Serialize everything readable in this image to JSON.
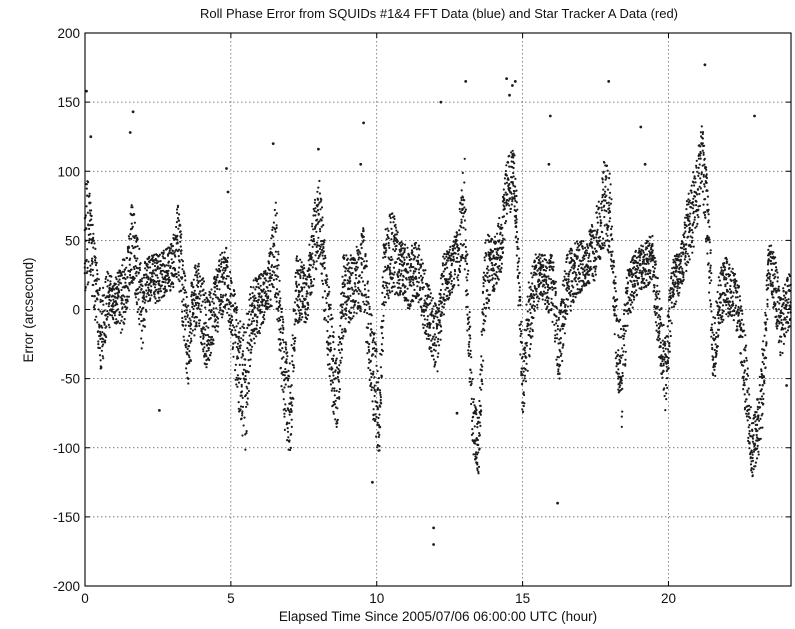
{
  "chart_data": {
    "type": "scatter",
    "title": "Roll Phase Error from SQUIDs #1&4 FFT Data (blue) and Star Tracker A Data (red)",
    "xlabel": "Elapsed Time Since 2005/07/06 06:00:00 UTC (hour)",
    "ylabel": "Error (arcsecond)",
    "xlim": [
      0,
      24.2
    ],
    "ylim": [
      -200,
      200
    ],
    "grid": true,
    "x_ticks": [
      0,
      5,
      10,
      15,
      20
    ],
    "x_tick_labels": [
      "0",
      "5",
      "10",
      "15",
      "20"
    ],
    "y_ticks": [
      200,
      150,
      100,
      50,
      0,
      -50,
      -100,
      -150,
      -200
    ],
    "y_tick_labels": [
      "200",
      "150",
      "100",
      "50",
      "0",
      "-50",
      "-100",
      "-150",
      "-200"
    ],
    "marker_color": "#1c1c1c",
    "sample_interval_hours": 0.016,
    "envelope": [
      [
        0.0,
        5,
        70
      ],
      [
        0.05,
        10,
        110
      ],
      [
        0.15,
        20,
        90
      ],
      [
        0.35,
        -10,
        45
      ],
      [
        0.55,
        -48,
        10
      ],
      [
        0.75,
        -15,
        30
      ],
      [
        1.0,
        -10,
        20
      ],
      [
        1.25,
        -20,
        35
      ],
      [
        1.45,
        0,
        40
      ],
      [
        1.6,
        20,
        80
      ],
      [
        1.75,
        5,
        60
      ],
      [
        1.95,
        -30,
        30
      ],
      [
        2.15,
        0,
        40
      ],
      [
        2.45,
        5,
        40
      ],
      [
        2.8,
        10,
        45
      ],
      [
        3.0,
        15,
        50
      ],
      [
        3.2,
        20,
        85
      ],
      [
        3.35,
        -20,
        40
      ],
      [
        3.55,
        -60,
        0
      ],
      [
        3.7,
        -20,
        30
      ],
      [
        3.9,
        -15,
        35
      ],
      [
        4.15,
        -45,
        15
      ],
      [
        4.35,
        -30,
        20
      ],
      [
        4.6,
        -15,
        40
      ],
      [
        4.85,
        0,
        45
      ],
      [
        5.05,
        -30,
        20
      ],
      [
        5.3,
        -80,
        0
      ],
      [
        5.5,
        -105,
        -10
      ],
      [
        5.7,
        -30,
        20
      ],
      [
        5.95,
        -20,
        25
      ],
      [
        6.25,
        0,
        30
      ],
      [
        6.55,
        5,
        80
      ],
      [
        6.7,
        -45,
        20
      ],
      [
        6.85,
        -90,
        -20
      ],
      [
        7.05,
        -110,
        -40
      ],
      [
        7.25,
        -10,
        40
      ],
      [
        7.6,
        -10,
        30
      ],
      [
        7.85,
        20,
        75
      ],
      [
        8.05,
        40,
        100
      ],
      [
        8.25,
        -20,
        40
      ],
      [
        8.45,
        -70,
        0
      ],
      [
        8.65,
        -90,
        -40
      ],
      [
        8.85,
        -20,
        40
      ],
      [
        9.2,
        -5,
        40
      ],
      [
        9.55,
        0,
        60
      ],
      [
        9.75,
        -60,
        10
      ],
      [
        9.95,
        -95,
        -20
      ],
      [
        10.1,
        -110,
        -50
      ],
      [
        10.25,
        0,
        60
      ],
      [
        10.5,
        10,
        80
      ],
      [
        10.8,
        10,
        50
      ],
      [
        11.1,
        0,
        45
      ],
      [
        11.4,
        10,
        50
      ],
      [
        11.65,
        -20,
        30
      ],
      [
        11.9,
        -35,
        10
      ],
      [
        12.1,
        -50,
        0
      ],
      [
        12.25,
        -10,
        40
      ],
      [
        12.5,
        10,
        45
      ],
      [
        12.8,
        15,
        60
      ],
      [
        13.0,
        40,
        115
      ],
      [
        13.15,
        -40,
        20
      ],
      [
        13.3,
        -110,
        -60
      ],
      [
        13.5,
        -120,
        -80
      ],
      [
        13.7,
        -10,
        60
      ],
      [
        14.0,
        10,
        50
      ],
      [
        14.25,
        25,
        70
      ],
      [
        14.45,
        60,
        105
      ],
      [
        14.7,
        80,
        125
      ],
      [
        14.85,
        10,
        60
      ],
      [
        15.0,
        -80,
        -30
      ],
      [
        15.2,
        -40,
        20
      ],
      [
        15.45,
        0,
        40
      ],
      [
        15.7,
        0,
        40
      ],
      [
        16.05,
        -10,
        40
      ],
      [
        16.25,
        -60,
        0
      ],
      [
        16.5,
        -10,
        40
      ],
      [
        16.85,
        10,
        50
      ],
      [
        17.15,
        15,
        50
      ],
      [
        17.45,
        20,
        65
      ],
      [
        17.8,
        45,
        110
      ],
      [
        18.0,
        40,
        100
      ],
      [
        18.2,
        -40,
        20
      ],
      [
        18.4,
        -85,
        -20
      ],
      [
        18.6,
        -10,
        30
      ],
      [
        18.9,
        10,
        45
      ],
      [
        19.2,
        15,
        50
      ],
      [
        19.45,
        20,
        55
      ],
      [
        19.6,
        -20,
        30
      ],
      [
        19.9,
        -75,
        -20
      ],
      [
        20.15,
        0,
        40
      ],
      [
        20.4,
        10,
        40
      ],
      [
        20.65,
        30,
        80
      ],
      [
        20.95,
        50,
        110
      ],
      [
        21.15,
        85,
        140
      ],
      [
        21.35,
        30,
        90
      ],
      [
        21.55,
        -60,
        -10
      ],
      [
        21.75,
        -15,
        30
      ],
      [
        22.0,
        -5,
        40
      ],
      [
        22.2,
        -5,
        30
      ],
      [
        22.4,
        -20,
        20
      ],
      [
        22.65,
        -80,
        -20
      ],
      [
        22.85,
        -125,
        -80
      ],
      [
        23.05,
        -110,
        -70
      ],
      [
        23.25,
        -85,
        -20
      ],
      [
        23.45,
        20,
        55
      ],
      [
        23.65,
        -5,
        40
      ],
      [
        23.85,
        -40,
        10
      ],
      [
        24.0,
        -20,
        20
      ],
      [
        24.2,
        -10,
        30
      ]
    ],
    "outliers": [
      [
        0.05,
        158
      ],
      [
        0.2,
        125
      ],
      [
        1.65,
        143
      ],
      [
        1.55,
        128
      ],
      [
        2.55,
        -73
      ],
      [
        4.85,
        102
      ],
      [
        4.9,
        85
      ],
      [
        6.45,
        120
      ],
      [
        8.0,
        116
      ],
      [
        9.55,
        135
      ],
      [
        9.45,
        105
      ],
      [
        9.85,
        -125
      ],
      [
        11.95,
        -158
      ],
      [
        11.95,
        -170
      ],
      [
        12.75,
        -75
      ],
      [
        13.05,
        165
      ],
      [
        14.45,
        167
      ],
      [
        14.65,
        162
      ],
      [
        14.75,
        165
      ],
      [
        14.55,
        155
      ],
      [
        15.95,
        140
      ],
      [
        16.2,
        -140
      ],
      [
        15.9,
        105
      ],
      [
        17.95,
        165
      ],
      [
        19.05,
        132
      ],
      [
        19.2,
        105
      ],
      [
        21.25,
        177
      ],
      [
        22.95,
        140
      ],
      [
        23.05,
        -65
      ],
      [
        24.05,
        -55
      ],
      [
        10.1,
        -85
      ],
      [
        12.2,
        150
      ]
    ]
  }
}
